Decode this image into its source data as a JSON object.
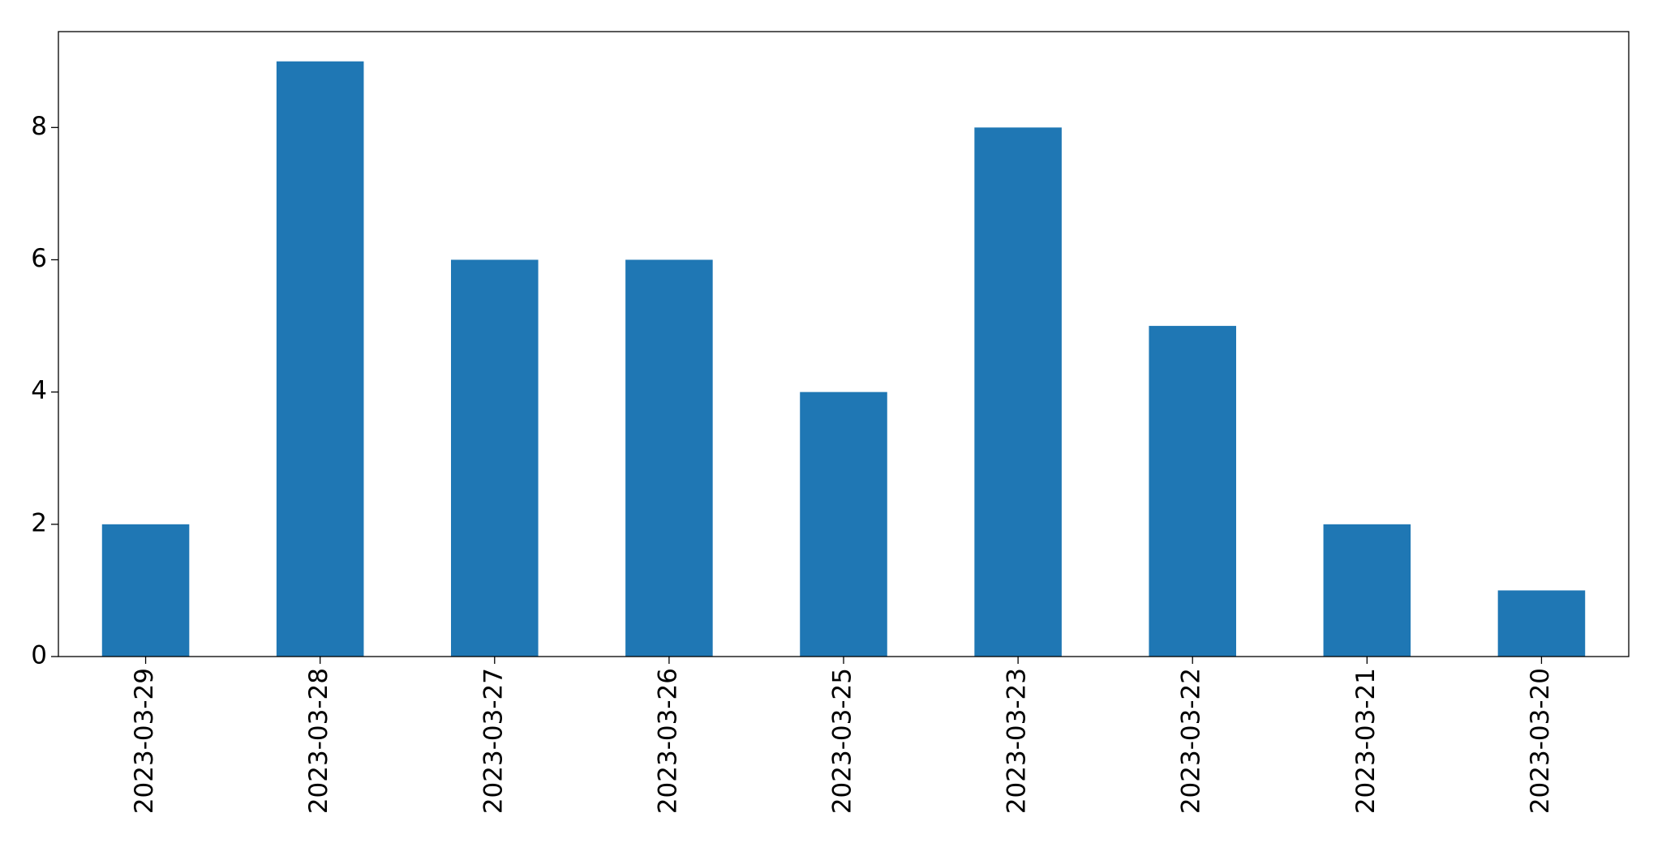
{
  "chart_data": {
    "type": "bar",
    "categories": [
      "2023-03-29",
      "2023-03-28",
      "2023-03-27",
      "2023-03-26",
      "2023-03-25",
      "2023-03-23",
      "2023-03-22",
      "2023-03-21",
      "2023-03-20"
    ],
    "values": [
      2,
      9,
      6,
      6,
      4,
      8,
      5,
      2,
      1
    ],
    "color": "#1f77b4",
    "ylim": [
      0,
      9.45
    ],
    "yticks": [
      0,
      2,
      4,
      6,
      8
    ],
    "grid": false
  }
}
